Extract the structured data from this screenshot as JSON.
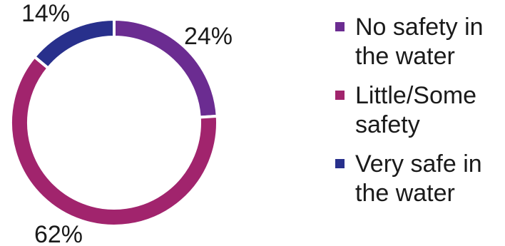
{
  "chart_data": {
    "type": "pie",
    "title": "",
    "donut": true,
    "legend_position": "right",
    "slices": [
      {
        "label": "No safety in the water",
        "value": 24,
        "display": "24%",
        "color": "#6b2c91"
      },
      {
        "label": "Little/Some safety",
        "value": 62,
        "display": "62%",
        "color": "#a1246d"
      },
      {
        "label": "Very safe in the water",
        "value": 14,
        "display": "14%",
        "color": "#28308c"
      }
    ]
  },
  "legend": {
    "items": [
      {
        "text": "No safety in\nthe water",
        "color": "#6b2c91"
      },
      {
        "text": "Little/Some\nsafety",
        "color": "#a1246d"
      },
      {
        "text": "Very safe in\nthe water",
        "color": "#28308c"
      }
    ]
  }
}
